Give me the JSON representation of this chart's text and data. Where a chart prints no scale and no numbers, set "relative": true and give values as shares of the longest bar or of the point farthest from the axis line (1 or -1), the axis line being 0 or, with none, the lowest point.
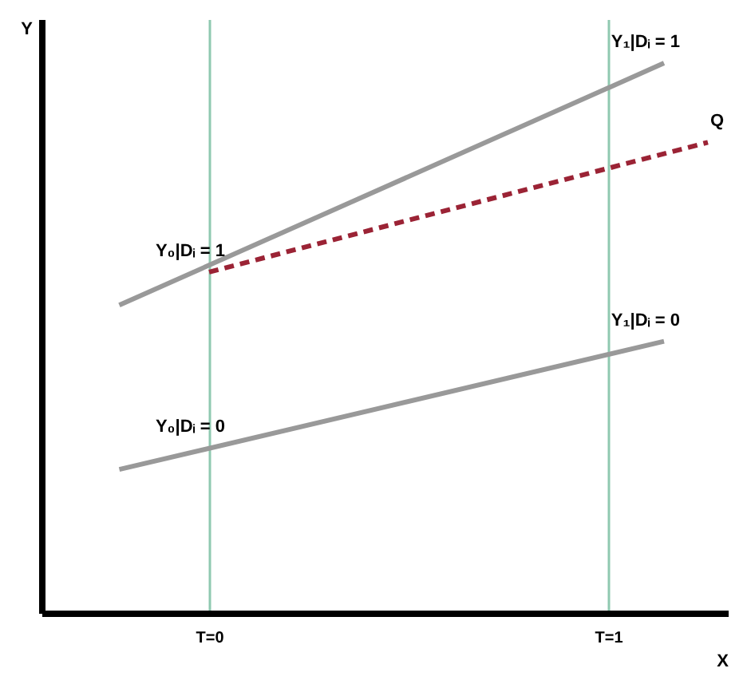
{
  "chart_data": {
    "type": "line",
    "relative": true,
    "xlabel": "X",
    "ylabel": "Y",
    "xlim": [
      -0.42,
      1.3
    ],
    "xticks": [
      {
        "value": 0,
        "label": "T=0"
      },
      {
        "value": 1,
        "label": "T=1"
      }
    ],
    "tick_labels": "x",
    "grid": "x",
    "series": [
      {
        "color": "#999999",
        "x": [
          -0.225,
          1.14
        ],
        "values": [
          0.56,
          1.0
        ]
      },
      {
        "color": "#999999",
        "x": [
          -0.225,
          1.14
        ],
        "values": [
          0.261,
          0.494
        ]
      },
      {
        "color": "#9b2335",
        "x": [
          0,
          1.25
        ],
        "values": [
          0.62,
          0.856
        ],
        "line_style": "dashed"
      }
    ],
    "annotations": [
      {
        "text": "Y₁|Dᵢ = 1",
        "x": 1.14,
        "y": 1.0
      },
      {
        "text": "Q",
        "x": 1.25,
        "y": 0.856
      },
      {
        "text": "Y₀|Dᵢ = 1",
        "x": 0,
        "y": 0.62
      },
      {
        "text": "Y₁|Dᵢ = 0",
        "x": 1.14,
        "y": 0.494
      },
      {
        "text": "Y₀|Dᵢ = 0",
        "x": 0,
        "y": 0.3
      }
    ]
  }
}
